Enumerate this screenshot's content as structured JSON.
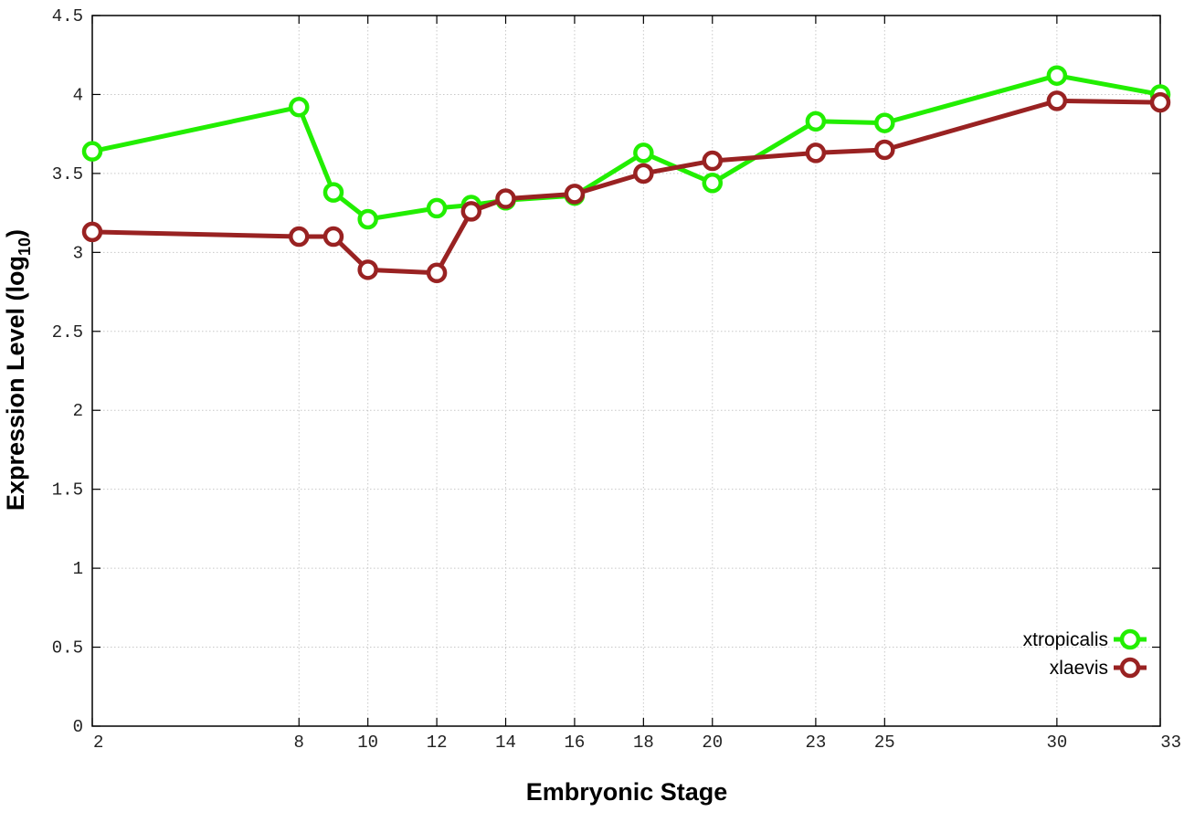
{
  "chart_data": {
    "type": "line",
    "xlabel": "Embryonic Stage",
    "ylabel_main": "Expression Level (log",
    "ylabel_sub": "10",
    "ylabel_close": ")",
    "x": [
      2,
      8,
      9,
      10,
      12,
      13,
      14,
      16,
      18,
      20,
      23,
      25,
      30,
      33
    ],
    "x_ticks": [
      "2",
      "8",
      "10",
      "12",
      "14",
      "16",
      "18",
      "20",
      "23",
      "25",
      "30",
      "33"
    ],
    "xlim": [
      2,
      33
    ],
    "y_ticks": [
      "0",
      "0.5",
      "1",
      "1.5",
      "2",
      "2.5",
      "3",
      "3.5",
      "4",
      "4.5"
    ],
    "ylim": [
      0,
      4.5
    ],
    "grid": true,
    "legend_position": "bottom-right",
    "series": [
      {
        "name": "xtropicalis",
        "color": "#22ee00",
        "values": [
          3.64,
          3.92,
          3.38,
          3.21,
          3.28,
          3.3,
          3.33,
          3.36,
          3.63,
          3.44,
          3.83,
          3.82,
          4.12,
          4.0
        ]
      },
      {
        "name": "xlaevis",
        "color": "#992222",
        "values": [
          3.13,
          3.1,
          3.1,
          2.89,
          2.87,
          3.26,
          3.34,
          3.37,
          3.5,
          3.58,
          3.63,
          3.65,
          3.96,
          3.95
        ]
      }
    ]
  }
}
